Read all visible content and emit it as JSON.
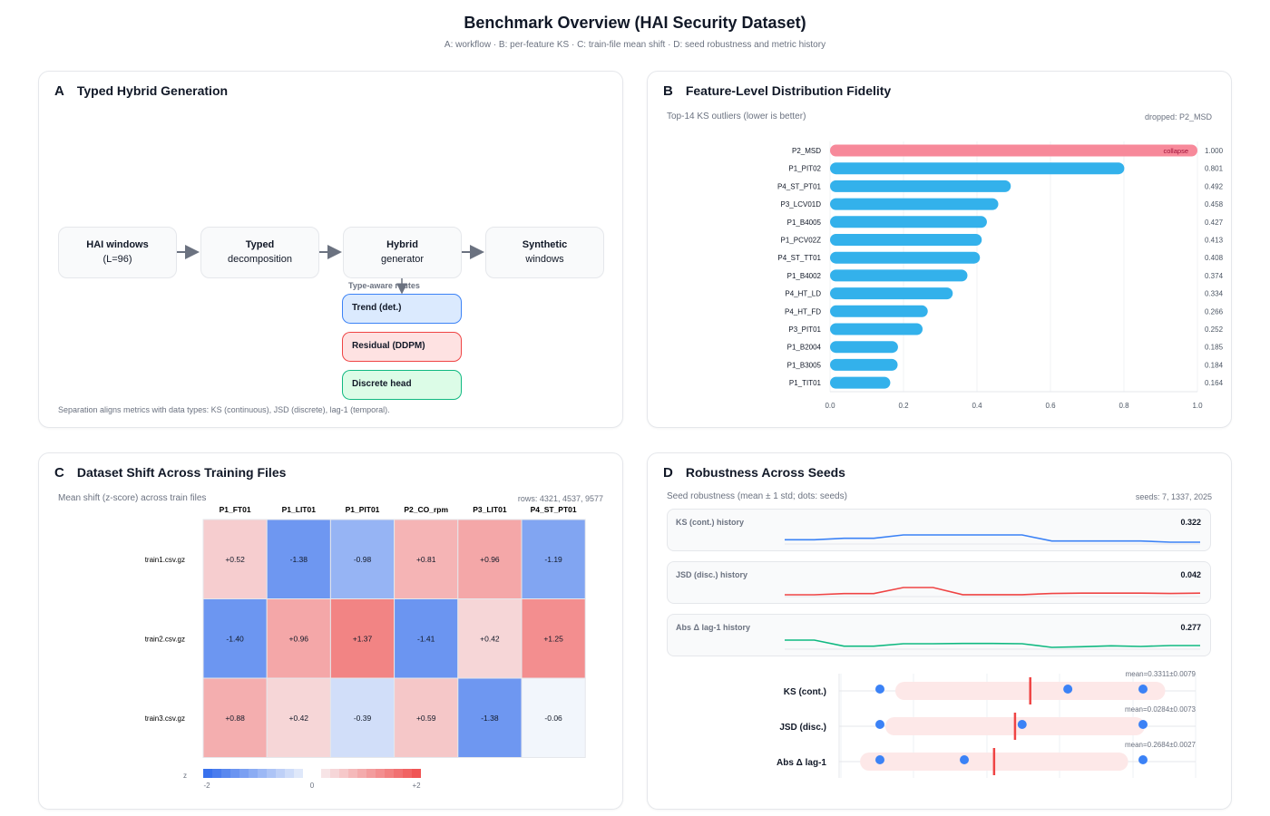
{
  "header": {
    "title": "Benchmark Overview (HAI Security Dataset)",
    "subtitle": "A: workflow · B: per-feature KS · C: train-file mean shift · D: seed robustness and metric history"
  },
  "panel_a": {
    "letter": "A",
    "title": "Typed Hybrid Generation",
    "nodes": [
      {
        "line1": "HAI windows",
        "line2": "(L=96)"
      },
      {
        "line1": "Typed",
        "line2": "decomposition"
      },
      {
        "line1": "Hybrid",
        "line2": "generator"
      },
      {
        "line1": "Synthetic",
        "line2": "windows"
      }
    ],
    "routes_label": "Type-aware routes",
    "routes": [
      {
        "label": "Trend (det.)",
        "color": "#3b82f6",
        "bg": "#dbeafe"
      },
      {
        "label": "Residual (DDPM)",
        "color": "#ef4444",
        "bg": "#fee2e2"
      },
      {
        "label": "Discrete head",
        "color": "#10b981",
        "bg": "#dcfce7"
      }
    ],
    "footnote": "Separation aligns metrics with data types: KS (continuous), JSD (discrete), lag-1 (temporal)."
  },
  "panel_b": {
    "letter": "B",
    "title": "Feature-Level Distribution Fidelity",
    "caption": "Top-14 KS outliers (lower is better)",
    "dropped": "dropped: P2_MSD"
  },
  "panel_c": {
    "letter": "C",
    "title": "Dataset Shift Across Training Files",
    "caption": "Mean shift (z-score) across train files",
    "rows_note": "rows: 4321, 4537, 9577",
    "colorbar_label": "z",
    "colorbar_ticks": [
      "-2",
      "0",
      "+2"
    ]
  },
  "panel_d": {
    "letter": "D",
    "title": "Robustness Across Seeds",
    "caption": "Seed robustness (mean ± 1 std; dots: seeds)",
    "seeds_note": "seeds: 7, 1337, 2025"
  },
  "chart_data": [
    {
      "type": "bar",
      "orientation": "horizontal",
      "xlim": [
        0,
        1
      ],
      "xticks": [
        "0.0",
        "0.2",
        "0.4",
        "0.6",
        "0.8",
        "1.0"
      ],
      "grid": true,
      "categories": [
        "P2_MSD",
        "P1_PIT02",
        "P4_ST_PT01",
        "P3_LCV01D",
        "P1_B4005",
        "P1_PCV02Z",
        "P4_ST_TT01",
        "P1_B4002",
        "P4_HT_LD",
        "P4_HT_FD",
        "P3_PIT01",
        "P1_B2004",
        "P1_B3005",
        "P1_TIT01"
      ],
      "values": [
        1.0,
        0.801,
        0.492,
        0.458,
        0.427,
        0.413,
        0.408,
        0.374,
        0.334,
        0.266,
        0.252,
        0.185,
        0.184,
        0.164
      ],
      "value_labels": [
        "1.000",
        "0.801",
        "0.492",
        "0.458",
        "0.427",
        "0.413",
        "0.408",
        "0.374",
        "0.334",
        "0.266",
        "0.252",
        "0.185",
        "0.184",
        "0.164"
      ],
      "annotation": "collapse",
      "colors": {
        "normal": "#33b1eb",
        "collapse": "#f7899a"
      }
    },
    {
      "type": "heatmap",
      "x": [
        "P1_FT01",
        "P1_LIT01",
        "P1_PIT01",
        "P2_CO_rpm",
        "P3_LIT01",
        "P4_ST_PT01"
      ],
      "y": [
        "train1.csv.gz",
        "train2.csv.gz",
        "train3.csv.gz"
      ],
      "values": [
        [
          0.52,
          -1.38,
          -0.98,
          0.81,
          0.96,
          -1.19
        ],
        [
          -1.4,
          0.96,
          1.37,
          -1.41,
          0.42,
          1.25
        ],
        [
          0.88,
          0.42,
          -0.39,
          0.59,
          -1.38,
          -0.06
        ]
      ],
      "labels": [
        [
          "+0.52",
          "-1.38",
          "-0.98",
          "+0.81",
          "+0.96",
          "-1.19"
        ],
        [
          "-1.40",
          "+0.96",
          "+1.37",
          "-1.41",
          "+0.42",
          "+1.25"
        ],
        [
          "+0.88",
          "+0.42",
          "-0.39",
          "+0.59",
          "-1.38",
          "-0.06"
        ]
      ],
      "zlim": [
        -2,
        2
      ],
      "colors": {
        "neg": "#2563eb",
        "pos": "#ef4444"
      }
    },
    {
      "type": "line",
      "series": [
        {
          "name": "KS (cont.) history",
          "last": "0.322",
          "color": "#3b82f6",
          "values": [
            0.326,
            0.326,
            0.3285,
            0.3285,
            0.334,
            0.334,
            0.334,
            0.334,
            0.334,
            0.324,
            0.324,
            0.324,
            0.324,
            0.322,
            0.322
          ]
        },
        {
          "name": "JSD (disc.) history",
          "last": "0.042",
          "color": "#ef4444",
          "values": [
            0.0404,
            0.0404,
            0.0416,
            0.0416,
            0.0476,
            0.0476,
            0.0405,
            0.0405,
            0.0405,
            0.0417,
            0.042,
            0.042,
            0.042,
            0.0417,
            0.042
          ]
        },
        {
          "name": "Abs Δ lag-1 history",
          "last": "0.277",
          "color": "#10b981",
          "values": [
            0.2824,
            0.2824,
            0.2764,
            0.2764,
            0.2788,
            0.2788,
            0.2791,
            0.2791,
            0.2788,
            0.2752,
            0.2758,
            0.2767,
            0.2761,
            0.277,
            0.277
          ]
        }
      ]
    },
    {
      "type": "scatter",
      "rows": [
        {
          "label": "KS (cont.)",
          "mean": 0.3311,
          "std": 0.0079,
          "mean_label": "mean=0.3311±0.0079",
          "seeds": [
            0.3223,
            0.3333,
            0.3377
          ]
        },
        {
          "label": "JSD (disc.)",
          "mean": 0.0284,
          "std": 0.0073,
          "mean_label": "mean=0.0284±0.0073",
          "seeds": [
            0.0208,
            0.0288,
            0.0356
          ]
        },
        {
          "label": "Abs Δ lag-1",
          "mean": 0.2684,
          "std": 0.0027,
          "mean_label": "mean=0.2684±0.0027",
          "seeds": [
            0.2661,
            0.2678,
            0.2714
          ]
        }
      ],
      "colors": {
        "dot": "#3b82f6",
        "mean": "#ef4444",
        "band": "#fde8e8"
      }
    }
  ]
}
